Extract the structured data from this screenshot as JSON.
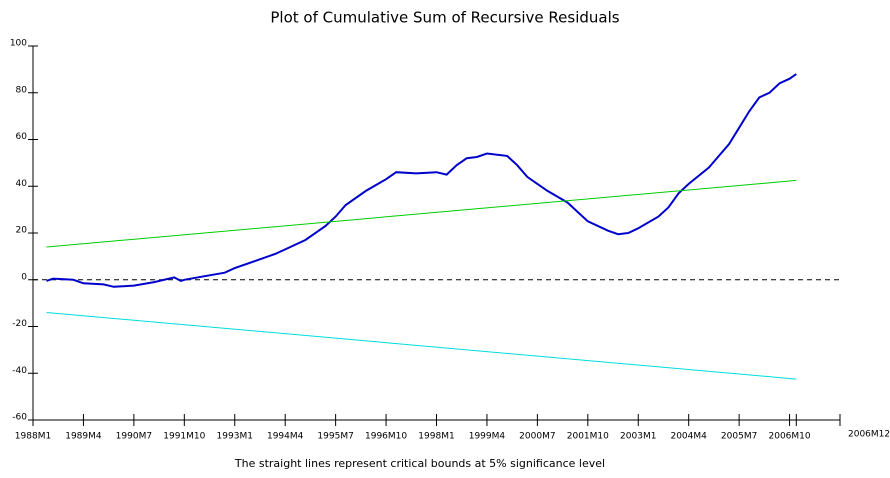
{
  "chart_data": {
    "type": "line",
    "title": "Plot of Cumulative Sum of Recursive Residuals",
    "caption": "The straight lines represent critical bounds at 5% significance level",
    "xlim": [
      "1988M1",
      "2008M1"
    ],
    "xticks": [
      "1988M1",
      "1989M4",
      "1990M7",
      "1991M10",
      "1993M1",
      "1994M4",
      "1995M7",
      "1996M10",
      "1998M1",
      "1999M4",
      "2000M7",
      "2001M10",
      "2003M1",
      "2004M4",
      "2005M7",
      "2006M10",
      "2006M12"
    ],
    "ylim": [
      -60,
      100
    ],
    "yticks": [
      -60,
      -40,
      -20,
      0,
      20,
      40,
      60,
      80,
      100
    ],
    "reference_line": 0,
    "series": [
      {
        "color": "#0000cc",
        "x": [
          "1988M5",
          "1988M7",
          "1989M1",
          "1989M4",
          "1989M10",
          "1990M1",
          "1990M7",
          "1991M1",
          "1991M7",
          "1991M9",
          "1991M10",
          "1992M4",
          "1992M10",
          "1993M1",
          "1993M7",
          "1994M1",
          "1994M4",
          "1994M10",
          "1995M4",
          "1995M7",
          "1995M10",
          "1996M4",
          "1996M10",
          "1997M1",
          "1997M7",
          "1998M1",
          "1998M4",
          "1998M7",
          "1998M10",
          "1999M1",
          "1999M4",
          "1999M10",
          "2000M1",
          "2000M4",
          "2000M7",
          "2000M10",
          "2001M1",
          "2001M4",
          "2001M7",
          "2001M10",
          "2002M4",
          "2002M7",
          "2002M10",
          "2003M1",
          "2003M7",
          "2003M10",
          "2004M1",
          "2004M4",
          "2004M10",
          "2005M1",
          "2005M4",
          "2005M7",
          "2005M10",
          "2006M1",
          "2006M4",
          "2006M7",
          "2006M10",
          "2006M12"
        ],
        "values": [
          -0.5,
          0.5,
          0,
          -1.5,
          -2,
          -3,
          -2.5,
          -1,
          1,
          -0.5,
          0,
          1.5,
          3,
          5,
          8,
          11,
          13,
          17,
          23,
          27,
          32,
          38,
          43,
          46,
          45.5,
          46,
          45,
          49,
          52,
          52.5,
          54,
          53,
          49,
          44,
          41,
          38,
          35.5,
          33,
          29,
          25,
          21,
          19.5,
          20,
          22,
          27,
          31,
          37,
          41,
          48,
          53,
          58,
          65,
          72,
          78,
          80,
          84,
          86,
          88
        ]
      },
      {
        "color": "#00cc00",
        "x": [
          "1988M5",
          "2006M12"
        ],
        "values": [
          14,
          42.5
        ]
      },
      {
        "color": "#00dddd",
        "x": [
          "1988M5",
          "2006M12"
        ],
        "values": [
          -14,
          -42.5
        ]
      }
    ]
  }
}
